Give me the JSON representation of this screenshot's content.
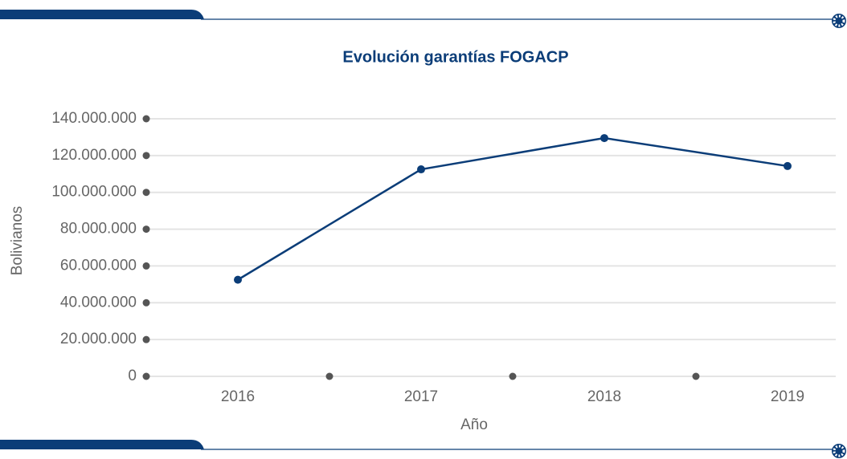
{
  "chart_data": {
    "type": "line",
    "title": "Evolución garantías FOGACP",
    "x_label": "Año",
    "y_label": "Bolivianos",
    "categories": [
      "2016",
      "2017",
      "2018",
      "2019"
    ],
    "series": [
      {
        "name": "Garantías",
        "color": "#0b3d78",
        "values": [
          52500000,
          112500000,
          129500000,
          114300000
        ]
      }
    ],
    "ylim": [
      0,
      140000000
    ],
    "yticks": [
      0,
      {
        "value": 20000000,
        "label": "20.000.000"
      },
      {
        "value": 40000000,
        "label": "40.000.000"
      },
      {
        "value": 60000000,
        "label": "60.000.000"
      },
      {
        "value": 80000000,
        "label": "80.000.000"
      },
      {
        "value": 100000000,
        "label": "100.000.000"
      },
      {
        "value": 120000000,
        "label": "120.000.000"
      },
      {
        "value": 140000000,
        "label": "140.000.000"
      }
    ],
    "grid": true
  }
}
